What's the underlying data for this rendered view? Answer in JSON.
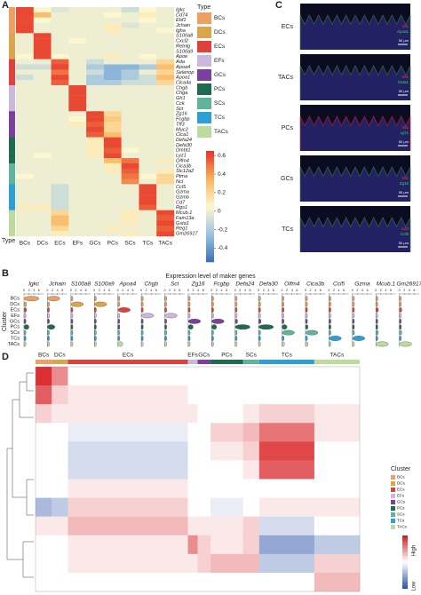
{
  "panel_a": {
    "label": "A",
    "legend_title": "Type",
    "type_axis_label": "Type",
    "types": [
      "BCs",
      "DCs",
      "ECs",
      "EFs",
      "GCs",
      "PCs",
      "SCs",
      "TCs",
      "TACs"
    ],
    "type_colors": [
      "#eea064",
      "#dba64a",
      "#e0413a",
      "#cdb8dd",
      "#7b3f9d",
      "#1f6b4f",
      "#5fb49c",
      "#2c9fd5",
      "#bcdb9c"
    ],
    "genes": [
      "Igkc",
      "Cd74",
      "Ebf1",
      "Jchain",
      "Igha",
      "S100a8",
      "Cxcl2",
      "Retnlg",
      "S100a9",
      "Apoe",
      "Ada",
      "Apoa4",
      "Selenop",
      "Apoa1",
      "Clca4a",
      "Chgb",
      "Chga",
      "Gh1",
      "Cck",
      "Sct",
      "Zg16",
      "Fcgbp",
      "Tff3",
      "Muc2",
      "Clca1",
      "Defa24",
      "Defa30",
      "Dmbt1",
      "Lyz1",
      "Olfm4",
      "Clca3b",
      "Slc12a2",
      "Ptma",
      "Ncl",
      "Ccl5",
      "Gzma",
      "Gzmb",
      "Cd7",
      "Rgs1",
      "Mcub.1",
      "Fam13a",
      "Gsta1",
      "Reg1",
      "Gm26917"
    ],
    "gene_type": [
      0,
      0,
      0,
      0,
      0,
      1,
      1,
      1,
      1,
      1,
      2,
      2,
      2,
      2,
      2,
      3,
      3,
      3,
      3,
      3,
      4,
      4,
      4,
      4,
      4,
      5,
      5,
      5,
      5,
      5,
      6,
      6,
      6,
      6,
      7,
      7,
      7,
      7,
      7,
      8,
      8,
      8,
      8,
      8
    ],
    "values": [
      [
        0.6,
        0.05,
        -0.05,
        0,
        0,
        0,
        -0.1,
        0.05,
        0
      ],
      [
        0.6,
        0.3,
        0,
        0,
        0,
        0.05,
        0,
        0.1,
        0
      ],
      [
        0.6,
        0.05,
        0,
        0,
        0,
        0,
        0,
        0.05,
        0
      ],
      [
        0.6,
        0,
        0,
        0,
        0,
        0.1,
        -0.05,
        0,
        0
      ],
      [
        0.6,
        0,
        0,
        0,
        0,
        0.1,
        0,
        0,
        0.05
      ],
      [
        0,
        0.6,
        0,
        0,
        0,
        0,
        0,
        0,
        0
      ],
      [
        0,
        0.6,
        0,
        0.05,
        0,
        0,
        0,
        0,
        0
      ],
      [
        0,
        0.6,
        0,
        0,
        0,
        0,
        0,
        0,
        0
      ],
      [
        0,
        0.6,
        0,
        0,
        0,
        0,
        0,
        0,
        0
      ],
      [
        0.05,
        0.6,
        0.05,
        0,
        0,
        0.1,
        0,
        0.05,
        0
      ],
      [
        0,
        0,
        0.55,
        0,
        -0.1,
        0,
        0,
        0,
        0.2
      ],
      [
        -0.1,
        -0.1,
        0.6,
        0,
        -0.2,
        -0.3,
        -0.3,
        -0.2,
        0.3
      ],
      [
        0,
        0,
        0.5,
        0,
        -0.1,
        -0.3,
        -0.2,
        0,
        0.2
      ],
      [
        -0.1,
        0,
        0.6,
        0,
        -0.2,
        -0.3,
        -0.2,
        -0.1,
        0.3
      ],
      [
        0,
        0,
        0.55,
        0,
        -0.2,
        -0.2,
        -0.1,
        -0.1,
        0.2
      ],
      [
        0,
        0,
        0,
        0.6,
        0,
        0,
        0,
        0,
        0
      ],
      [
        0,
        0,
        0,
        0.6,
        0,
        0,
        0,
        0,
        0
      ],
      [
        0,
        0,
        0,
        0.6,
        0,
        0,
        0,
        0,
        0
      ],
      [
        0,
        0,
        0,
        0.6,
        0,
        0,
        0,
        0,
        0
      ],
      [
        0,
        0,
        0,
        0.6,
        0,
        0,
        0,
        0,
        0
      ],
      [
        0,
        0,
        0,
        0,
        0.6,
        0.2,
        0,
        0,
        0
      ],
      [
        0,
        0,
        0,
        0.05,
        0.6,
        0.25,
        0,
        0,
        0
      ],
      [
        0,
        0,
        0,
        0.1,
        0.55,
        0.2,
        0,
        0,
        0
      ],
      [
        0,
        0,
        0,
        0,
        0.6,
        0.2,
        0,
        0,
        0
      ],
      [
        0,
        0,
        0,
        0,
        0.55,
        0.3,
        0,
        0,
        0
      ],
      [
        0,
        0,
        0,
        0,
        0.1,
        0.6,
        0,
        0,
        0
      ],
      [
        0,
        0,
        0,
        0,
        0.1,
        0.6,
        0,
        0,
        0
      ],
      [
        0,
        0,
        0,
        0,
        0.1,
        0.55,
        0.05,
        0,
        0
      ],
      [
        0,
        0.05,
        0,
        0,
        0.1,
        0.6,
        0,
        0,
        0
      ],
      [
        0,
        0,
        0,
        0,
        0,
        0.3,
        0.5,
        0,
        0.1
      ],
      [
        0,
        0,
        0,
        0,
        0,
        0.1,
        0.6,
        0,
        0
      ],
      [
        0,
        0,
        0,
        0,
        0,
        0.1,
        0.55,
        0,
        0.1
      ],
      [
        0.05,
        0,
        0,
        0,
        0,
        0,
        0.5,
        0.05,
        0.2
      ],
      [
        0,
        0,
        0,
        0,
        0,
        0,
        0.45,
        0,
        0.2
      ],
      [
        0,
        0,
        -0.1,
        0,
        0,
        0,
        0,
        0.6,
        0
      ],
      [
        0,
        0,
        -0.1,
        0,
        0,
        0,
        0,
        0.6,
        0
      ],
      [
        0,
        0,
        -0.1,
        0,
        0,
        0,
        0,
        0.6,
        0
      ],
      [
        0,
        0,
        -0.1,
        0,
        0,
        0,
        0,
        0.6,
        0
      ],
      [
        0.1,
        0.1,
        -0.1,
        0,
        0,
        0,
        0,
        0.55,
        0
      ],
      [
        0,
        0,
        0.2,
        0,
        0,
        0,
        0.1,
        0,
        0.6
      ],
      [
        0,
        0,
        0.3,
        0,
        0,
        0,
        0.1,
        0,
        0.55
      ],
      [
        0,
        0,
        0.3,
        0,
        0,
        0,
        0.1,
        0,
        0.6
      ],
      [
        0,
        0,
        0.2,
        0,
        0,
        0.1,
        0,
        0,
        0.55
      ],
      [
        0,
        0,
        0.1,
        0,
        0,
        0,
        0.1,
        0,
        0.6
      ]
    ],
    "colorbar": {
      "lim": [
        -0.55,
        0.65
      ],
      "ticks": [
        0.6,
        0.4,
        0.2,
        0,
        -0.2,
        -0.4
      ],
      "colormap": [
        "#3b6fb6",
        "#9cc3e0",
        "#fdf7cf",
        "#f9b45a",
        "#e6322a"
      ]
    }
  },
  "panel_b": {
    "label": "B",
    "title": "Expression level of maker genes",
    "y_label": "Cluster",
    "genes": [
      "Igkc",
      "Jchain",
      "S100a8",
      "S100a9",
      "Apoa4",
      "Chgb",
      "Sct",
      "Zg16",
      "Fcgbp",
      "Defa24",
      "Defa30",
      "Olfm4",
      "Clca3b",
      "Ccl5",
      "Gzma",
      "Mcub.1",
      "Gm26917"
    ],
    "xlim": [
      0,
      8
    ],
    "xticks": [
      0,
      2,
      4,
      6
    ],
    "values": [
      [
        6,
        1,
        1,
        0.8,
        0.8,
        2,
        0.8,
        0.8,
        0.8
      ],
      [
        5,
        0.8,
        0.8,
        0.8,
        0.8,
        3,
        0.8,
        0.8,
        0.8
      ],
      [
        0.8,
        5,
        0.8,
        0.8,
        0.8,
        0.8,
        0.8,
        0.8,
        0.8
      ],
      [
        0.8,
        5,
        0.8,
        0.8,
        0.8,
        0.8,
        0.8,
        0.8,
        0.8
      ],
      [
        0.8,
        0.8,
        5,
        0.8,
        0.8,
        0.8,
        0.8,
        0.8,
        2
      ],
      [
        0.8,
        0.8,
        0.8,
        5,
        0.8,
        0.8,
        0.8,
        0.8,
        0.8
      ],
      [
        0.8,
        0.8,
        0.8,
        5,
        0.8,
        0.8,
        0.8,
        0.8,
        0.8
      ],
      [
        0.8,
        0.8,
        0.8,
        0.8,
        5,
        2,
        0.8,
        0.8,
        0.8
      ],
      [
        0.8,
        0.8,
        0.8,
        0.8,
        5,
        2,
        0.8,
        0.8,
        0.8
      ],
      [
        0.8,
        0.8,
        0.8,
        0.8,
        1,
        6,
        0.8,
        0.8,
        0.8
      ],
      [
        0.8,
        0.8,
        0.8,
        0.8,
        1,
        6,
        0.8,
        0.8,
        0.8
      ],
      [
        0.8,
        0.8,
        0.8,
        0.8,
        0.8,
        2,
        5,
        0.8,
        1
      ],
      [
        0.8,
        0.8,
        0.8,
        0.8,
        0.8,
        1,
        5,
        0.8,
        1
      ],
      [
        0.8,
        0.8,
        0.8,
        0.8,
        0.8,
        0.8,
        0.8,
        5,
        0.8
      ],
      [
        0.8,
        0.8,
        0.8,
        0.8,
        0.8,
        0.8,
        0.8,
        5,
        0.8
      ],
      [
        0.8,
        0.8,
        1,
        0.8,
        0.8,
        0.8,
        1,
        0.8,
        5
      ],
      [
        0.8,
        0.8,
        1,
        0.8,
        0.8,
        0.8,
        1,
        0.8,
        5
      ]
    ]
  },
  "panel_c": {
    "label": "C",
    "scale_bar": "50 μm",
    "rows": [
      {
        "name": "ECs",
        "red": "Vil1",
        "green": "Apoa1"
      },
      {
        "name": "TACs",
        "red": "Vil1",
        "green": "Gsta1"
      },
      {
        "name": "PCs",
        "red": "Vil1",
        "green": "Lyz1"
      },
      {
        "name": "GCs",
        "red": "Vil1",
        "green": "Zg16"
      },
      {
        "name": "TCs",
        "red": "Cd3",
        "green": "Ccl5"
      }
    ]
  },
  "panel_d": {
    "label": "D",
    "legend_title": "Cluster",
    "high": "High",
    "low": "Low",
    "cell_fraction": [
      5,
      5,
      37,
      3,
      4,
      10,
      5,
      17,
      14
    ],
    "lim": [
      -1,
      1
    ],
    "values": [
      [
        0.9,
        0.5,
        0,
        0,
        0,
        0,
        0,
        0,
        0
      ],
      [
        0.7,
        0.2,
        0.1,
        0,
        0,
        0,
        0,
        0,
        0
      ],
      [
        0.2,
        0.1,
        0.1,
        0.1,
        0,
        0,
        0.1,
        0.2,
        0.1
      ],
      [
        0,
        0,
        -0.1,
        0,
        0,
        0.2,
        0.3,
        0.6,
        0.1
      ],
      [
        0,
        0,
        -0.2,
        0,
        0,
        0.1,
        0.2,
        0.8,
        0
      ],
      [
        0,
        0,
        -0.2,
        0,
        0,
        0,
        0.1,
        0.7,
        0
      ],
      [
        0,
        0,
        0.1,
        0,
        0,
        0,
        0,
        0,
        0
      ],
      [
        -0.4,
        -0.3,
        0.2,
        0,
        0,
        -0.1,
        0,
        0.1,
        0.1
      ],
      [
        0.1,
        0.1,
        0.3,
        0.1,
        0.1,
        0.1,
        0.2,
        -0.2,
        0
      ],
      [
        0,
        0,
        0.1,
        0.5,
        0.2,
        0.1,
        0.2,
        -0.5,
        -0.3
      ],
      [
        0,
        0,
        0.1,
        0.1,
        0.2,
        0.3,
        0.3,
        -0.3,
        0.2
      ],
      [
        0,
        0,
        0,
        0,
        0,
        0,
        0,
        0,
        0.3
      ]
    ]
  }
}
